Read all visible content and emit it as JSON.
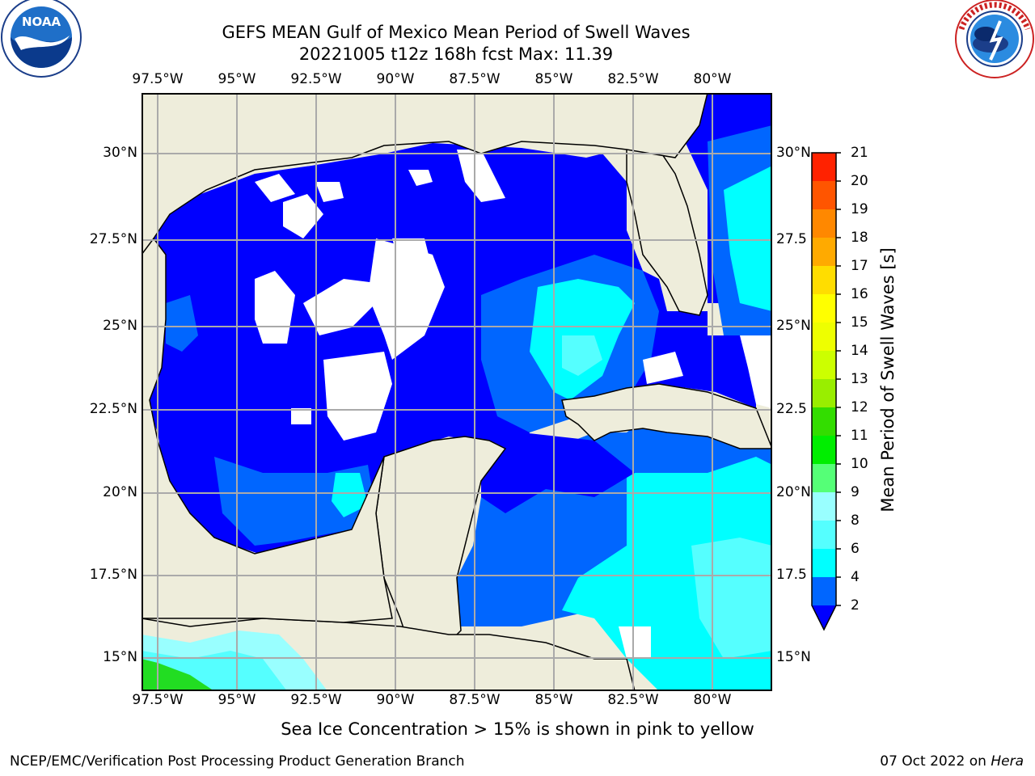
{
  "title": {
    "line1": "GEFS MEAN Gulf of Mexico Mean Period of Swell Waves",
    "line2": "20221005 t12z 168h fcst   Max: 11.39"
  },
  "map": {
    "lon_labels": [
      "97.5°W",
      "95°W",
      "92.5°W",
      "90°W",
      "87.5°W",
      "85°W",
      "82.5°W",
      "80°W"
    ],
    "lat_labels_left": [
      "30°N",
      "27.5°N",
      "25°N",
      "22.5°N",
      "20°N",
      "17.5°N",
      "15°N"
    ],
    "lat_labels_right": [
      "30°N",
      "27.5",
      "25°N",
      "22.5",
      "20°N",
      "17.5",
      "15°N"
    ],
    "lon_range": [
      -98,
      -78
    ],
    "lat_range": [
      14,
      32
    ]
  },
  "colorbar": {
    "title": "Mean Period of Swell Waves [s]",
    "ticks": [
      "21",
      "20",
      "19",
      "18",
      "17",
      "16",
      "15",
      "14",
      "13",
      "12",
      "11",
      "10",
      "9",
      "8",
      "6",
      "4",
      "2"
    ],
    "colors": {
      "c2_4": "#0066ff",
      "c4_6": "#00ffff",
      "c6_8": "#55ffff",
      "c8_9": "#99ffff",
      "c9_10": "#55ff77",
      "c10_11": "#00ee00",
      "c11_12": "#33dd00",
      "c12_13": "#99ee00",
      "c13_14": "#ccff00",
      "c14_15": "#eeff00",
      "c15_16": "#ffff00",
      "c16_17": "#ffdd00",
      "c17_18": "#ffaa00",
      "c18_19": "#ff8800",
      "c19_20": "#ff5500",
      "c20_21": "#ff2200",
      "under": "#0000ff"
    }
  },
  "note": "Sea Ice Concentration > 15% is shown in pink to yellow",
  "footer": {
    "left": "NCEP/EMC/Verification Post Processing Product Generation Branch",
    "right_date": "07 Oct 2022 on",
    "right_host": "Hera"
  },
  "colors": {
    "land": "#eeeddb",
    "deep": "#0000ff",
    "mid": "#0066ff",
    "light": "#00ffff",
    "pale": "#99ffff",
    "green": "#22dd22",
    "grid": "#aaaaaa"
  }
}
